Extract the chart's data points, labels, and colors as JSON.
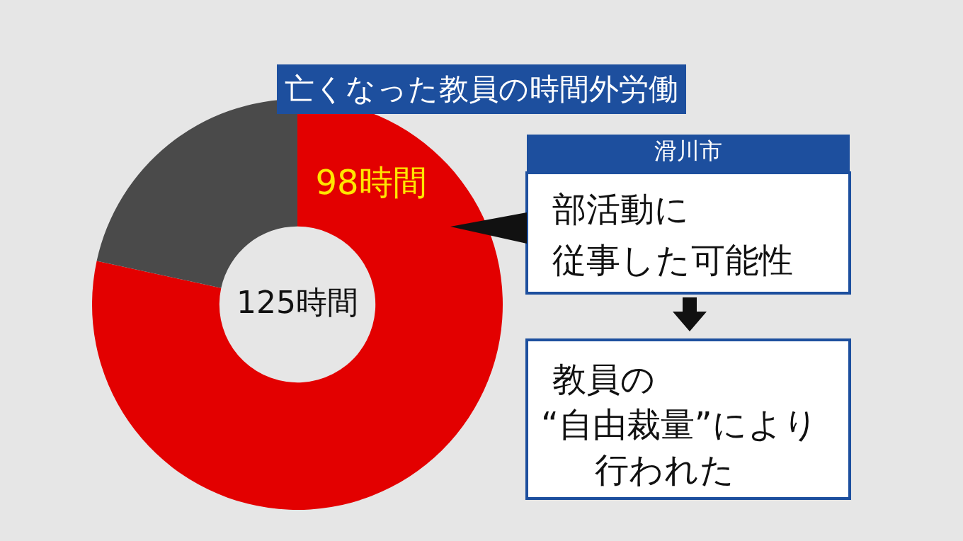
{
  "chart_data": {
    "type": "donut",
    "title": "亡くなった教員の時間外労働",
    "categories": [
      null,
      null
    ],
    "values": [
      98,
      27
    ],
    "colors": [
      "#e30000",
      "#4a4a4a"
    ],
    "value_labels": [
      "98時間",
      null
    ],
    "totals": [
      "125時間"
    ],
    "annotations": [
      "滑川市",
      "部活動に",
      "従事した可能性",
      "教員の",
      "“自由裁量”により",
      "行われた"
    ]
  }
}
